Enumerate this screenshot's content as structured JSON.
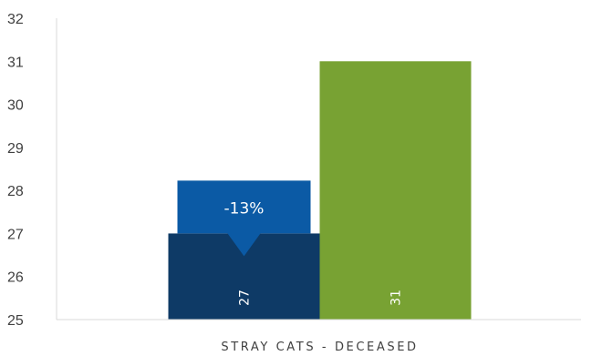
{
  "chart_data": {
    "type": "bar",
    "categories": [
      "STRAY CATS - DECEASED"
    ],
    "series": [
      {
        "values": [
          27
        ],
        "color": "#0e3a66"
      },
      {
        "values": [
          31
        ],
        "color": "#78a233"
      }
    ],
    "data_labels": [
      "27",
      "31"
    ],
    "ylim": [
      25,
      32
    ],
    "yticks": [
      "25",
      "26",
      "27",
      "28",
      "29",
      "30",
      "31",
      "32"
    ],
    "grid": false,
    "callout": {
      "text": "-13%",
      "color": "#0b5aa5"
    },
    "axis_color": "#d9d9d9"
  }
}
